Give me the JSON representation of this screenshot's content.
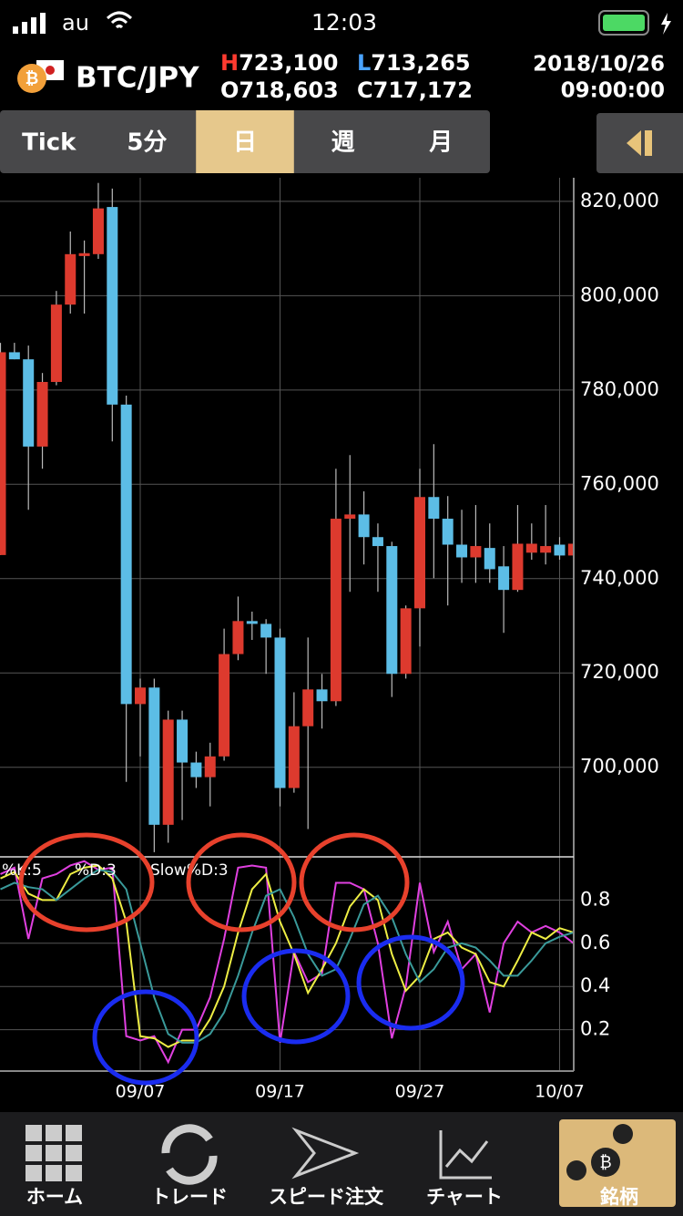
{
  "status": {
    "carrier": "au",
    "time": "12:03"
  },
  "header": {
    "symbol": "BTC/JPY",
    "ohlc": [
      {
        "letter": "H",
        "value": "723,100"
      },
      {
        "letter": "L",
        "value": "713,265"
      },
      {
        "letter": "O",
        "value": "718,603"
      },
      {
        "letter": "C",
        "value": "717,172"
      }
    ],
    "date": "2018/10/26",
    "time": "09:00:00"
  },
  "tabs": {
    "items": [
      "Tick",
      "5分",
      "日",
      "週",
      "月"
    ],
    "active": 2
  },
  "nav": {
    "items": [
      "ホーム",
      "トレード",
      "スピード注文",
      "チャート",
      "銘柄"
    ]
  },
  "chart_data": [
    {
      "type": "candlestick",
      "up_color": "#dd3a2e",
      "down_color": "#5cbde6",
      "open": [
        745000,
        788000,
        786500,
        768000,
        781700,
        798100,
        808400,
        808800,
        818800,
        776900,
        713400,
        716900,
        687800,
        710100,
        701000,
        697900,
        702300,
        724000,
        731000,
        730400,
        727500,
        695600,
        708700,
        716500,
        714000,
        752700,
        753600,
        748800,
        746900,
        719800,
        733700,
        757300,
        752700,
        747200,
        744500,
        746500,
        742600,
        737600,
        745500,
        745500,
        747200,
        744900
      ],
      "high": [
        790000,
        790000,
        789400,
        783600,
        801000,
        813600,
        811700,
        823900,
        822700,
        778800,
        718800,
        718800,
        712000,
        712000,
        703300,
        705200,
        729400,
        736200,
        733000,
        731400,
        729400,
        715900,
        727500,
        719800,
        763300,
        766200,
        758500,
        751700,
        747800,
        734300,
        763300,
        768500,
        757500,
        754600,
        755600,
        751700,
        746900,
        755600,
        751700,
        755600,
        748800,
        748800
      ],
      "low": [
        745000,
        786500,
        754600,
        763300,
        781000,
        796200,
        796200,
        807800,
        769100,
        696900,
        702300,
        682000,
        684000,
        688800,
        695600,
        691700,
        701400,
        722700,
        727000,
        719800,
        691700,
        694600,
        686900,
        708200,
        713000,
        737200,
        743000,
        737200,
        714900,
        718800,
        725600,
        740100,
        734300,
        739100,
        739100,
        739100,
        728500,
        737200,
        744000,
        743000,
        744000,
        744000
      ],
      "close": [
        788000,
        786500,
        768000,
        781700,
        798100,
        808800,
        809000,
        818500,
        776900,
        713400,
        716900,
        687800,
        710100,
        701000,
        697900,
        702300,
        724000,
        731000,
        730400,
        727500,
        695600,
        708700,
        716500,
        714000,
        752700,
        753600,
        748800,
        746900,
        719800,
        733700,
        757300,
        752700,
        747200,
        744500,
        746900,
        742000,
        737600,
        747400,
        747400,
        746900,
        744900,
        747400
      ],
      "ylim": [
        681000,
        825000
      ],
      "yticks": [
        {
          "value": 700000,
          "label": "700,000"
        },
        {
          "value": 720000,
          "label": "720,000"
        },
        {
          "value": 740000,
          "label": "740,000"
        },
        {
          "value": 760000,
          "label": "760,000"
        },
        {
          "value": 780000,
          "label": "780,000"
        },
        {
          "value": 800000,
          "label": "800,000"
        },
        {
          "value": 820000,
          "label": "820,000"
        }
      ],
      "grid": true
    },
    {
      "type": "line",
      "categories": [
        null,
        null,
        null,
        null,
        null,
        null,
        null,
        null,
        null,
        null,
        "09/07",
        null,
        null,
        null,
        null,
        null,
        null,
        null,
        null,
        null,
        "09/17",
        null,
        null,
        null,
        null,
        null,
        null,
        null,
        null,
        null,
        "09/27",
        null,
        null,
        null,
        null,
        null,
        null,
        null,
        null,
        null,
        "10/07",
        null
      ],
      "series": [
        {
          "name": "%K:5",
          "color": "#e040e0",
          "values": [
            0.92,
            0.95,
            0.62,
            0.9,
            0.92,
            0.96,
            0.98,
            0.94,
            0.95,
            0.17,
            0.15,
            0.17,
            0.05,
            0.2,
            0.2,
            0.35,
            0.62,
            0.95,
            0.96,
            0.95,
            0.14,
            0.56,
            0.42,
            0.46,
            0.88,
            0.88,
            0.85,
            0.6,
            0.16,
            0.4,
            0.88,
            0.56,
            0.7,
            0.48,
            0.55,
            0.28,
            0.6,
            0.7,
            0.65,
            0.68,
            0.65,
            0.6
          ]
        },
        {
          "name": "%D:3",
          "color": "#eeee44",
          "values": [
            0.9,
            0.93,
            0.83,
            0.8,
            0.8,
            0.92,
            0.95,
            0.96,
            0.9,
            0.7,
            0.17,
            0.16,
            0.12,
            0.15,
            0.15,
            0.25,
            0.4,
            0.65,
            0.85,
            0.92,
            0.7,
            0.55,
            0.37,
            0.48,
            0.6,
            0.77,
            0.85,
            0.8,
            0.55,
            0.38,
            0.45,
            0.62,
            0.65,
            0.58,
            0.55,
            0.42,
            0.4,
            0.52,
            0.65,
            0.62,
            0.67,
            0.65
          ]
        },
        {
          "name": "Slow%D:3",
          "color": "#3a9a9a",
          "values": [
            0.85,
            0.88,
            0.86,
            0.85,
            0.8,
            0.85,
            0.9,
            0.94,
            0.93,
            0.85,
            0.6,
            0.35,
            0.18,
            0.14,
            0.14,
            0.18,
            0.28,
            0.45,
            0.65,
            0.82,
            0.85,
            0.72,
            0.55,
            0.45,
            0.48,
            0.62,
            0.78,
            0.82,
            0.72,
            0.55,
            0.42,
            0.48,
            0.58,
            0.6,
            0.58,
            0.52,
            0.45,
            0.45,
            0.52,
            0.6,
            0.63,
            0.65
          ]
        }
      ],
      "ylim": [
        0,
        1
      ],
      "yticks": [
        0.2,
        0.4,
        0.6,
        0.8
      ],
      "grid": true
    }
  ]
}
